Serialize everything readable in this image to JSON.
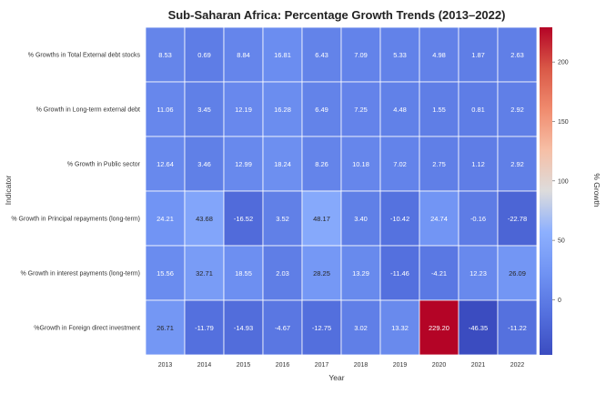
{
  "chart_data": {
    "type": "heatmap",
    "title": "Sub-Saharan Africa: Percentage Growth Trends (2013–2022)",
    "xlabel": "Year",
    "ylabel": "Indicator",
    "x": [
      "2013",
      "2014",
      "2015",
      "2016",
      "2017",
      "2018",
      "2019",
      "2020",
      "2021",
      "2022"
    ],
    "y": [
      "% Growths in Total External debt stocks",
      "% Growth in Long-term external debt",
      "% Growth in Public sector",
      "% Growth in Principal repayments (long-term)",
      "% Growth in interest payments (long-term)",
      "%Growth in Foreign direct investment"
    ],
    "values": [
      [
        8.53,
        0.69,
        8.84,
        16.81,
        6.43,
        7.09,
        5.33,
        4.98,
        1.87,
        2.63
      ],
      [
        11.06,
        3.45,
        12.19,
        16.28,
        6.49,
        7.25,
        4.48,
        1.55,
        0.81,
        2.92
      ],
      [
        12.64,
        3.46,
        12.99,
        18.24,
        8.26,
        10.18,
        7.02,
        2.75,
        1.12,
        2.92
      ],
      [
        24.21,
        43.68,
        -16.52,
        3.52,
        48.17,
        3.4,
        -10.42,
        24.74,
        -0.16,
        -22.78
      ],
      [
        15.56,
        32.71,
        18.55,
        2.03,
        28.25,
        13.29,
        -11.46,
        -4.21,
        12.23,
        26.09
      ],
      [
        26.71,
        -11.79,
        -14.93,
        -4.67,
        -12.75,
        3.02,
        13.32,
        229.2,
        -46.35,
        -11.22
      ]
    ],
    "colormap": "coolwarm",
    "vmin": -46.35,
    "vmax": 229.2,
    "colorbar": {
      "label": "% Growth",
      "ticks": [
        0,
        50,
        100,
        150,
        200
      ]
    },
    "annotations": true,
    "grid": false
  }
}
